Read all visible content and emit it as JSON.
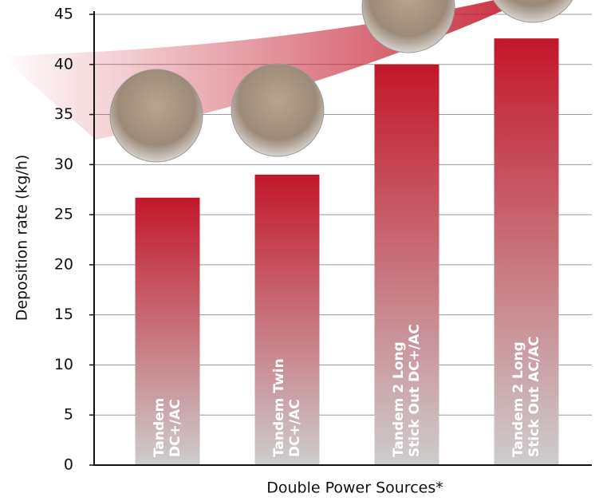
{
  "chart_data": {
    "type": "bar",
    "y_label": "Deposition rate (kg/h)",
    "x_label": "Double Power Sources*",
    "categories": [
      "Tandem\nDC+/AC",
      "Tandem Twin\nDC+/AC",
      "Tandem 2 Long\nStick Out DC+/AC",
      "Tandem 2 Long\nStick Out AC/AC"
    ],
    "values": [
      26.7,
      29,
      40,
      42.6
    ],
    "color": "#c2172a",
    "ylim": [
      0,
      45
    ],
    "yticks": [
      0,
      5,
      10,
      15,
      20,
      25,
      30,
      35,
      40,
      45
    ],
    "grid": true
  }
}
